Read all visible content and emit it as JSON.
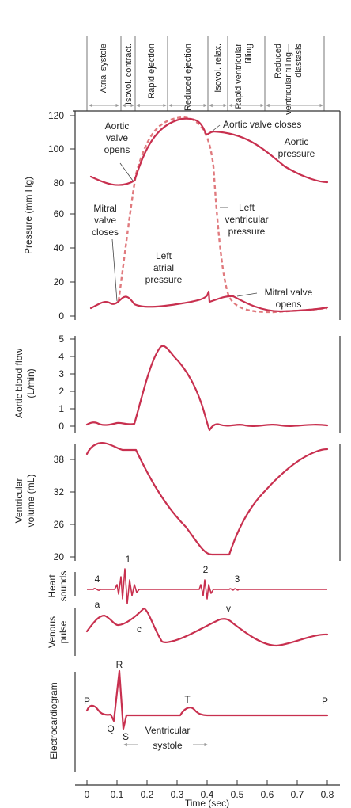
{
  "phases": [
    {
      "label": "Atrial systole"
    },
    {
      "label": "Isovol. contract."
    },
    {
      "label": "Rapid ejection"
    },
    {
      "label": "Reduced ejection"
    },
    {
      "label": "Isovol. relax."
    },
    {
      "label": "Rapid ventricular",
      "label2": "filling"
    },
    {
      "label": "Reduced",
      "label2": "ventricular filling—",
      "label3": "diastasis"
    }
  ],
  "panels": {
    "pressure": {
      "ylabel": "Pressure (mm Hg)",
      "ticks": [
        "0",
        "20",
        "40",
        "60",
        "80",
        "100",
        "120"
      ],
      "annotations": {
        "aortic_valve_opens": [
          "Aortic",
          "valve",
          "opens"
        ],
        "aortic_valve_closes": "Aortic valve closes",
        "aortic_pressure": [
          "Aortic",
          "pressure"
        ],
        "mitral_valve_closes": [
          "Mitral",
          "valve",
          "closes"
        ],
        "left_ventricular_pressure": [
          "Left",
          "ventricular",
          "pressure"
        ],
        "left_atrial_pressure": [
          "Left",
          "atrial",
          "pressure"
        ],
        "mitral_valve_opens": [
          "Mitral valve",
          "opens"
        ]
      }
    },
    "flow": {
      "ylabel": [
        "Aortic blood flow",
        "(L/min)"
      ],
      "ticks": [
        "0",
        "1",
        "2",
        "3",
        "4",
        "5"
      ]
    },
    "volume": {
      "ylabel": [
        "Ventricular",
        "volume (mL)"
      ],
      "ticks": [
        "20",
        "26",
        "32",
        "38"
      ]
    },
    "heart_sounds": {
      "ylabel": [
        "Heart",
        "sounds"
      ],
      "labels": [
        "4",
        "1",
        "2",
        "3"
      ]
    },
    "venous": {
      "ylabel": [
        "Venous",
        "pulse"
      ],
      "labels": [
        "a",
        "c",
        "v"
      ]
    },
    "ecg": {
      "ylabel": "Electrocardiogram",
      "labels": [
        "P",
        "R",
        "Q",
        "S",
        "T",
        "P"
      ],
      "systole_label": [
        "Ventricular",
        "systole"
      ]
    }
  },
  "x_axis": {
    "ticks": [
      "0",
      "0.1",
      "0.2",
      "0.3",
      "0.4",
      "0.5",
      "0.6",
      "0.7",
      "0.8"
    ],
    "label": "Time (sec)"
  },
  "colors": {
    "curve": "#c8304f",
    "dashed": "#e07a7e",
    "arrow": "#999999"
  }
}
